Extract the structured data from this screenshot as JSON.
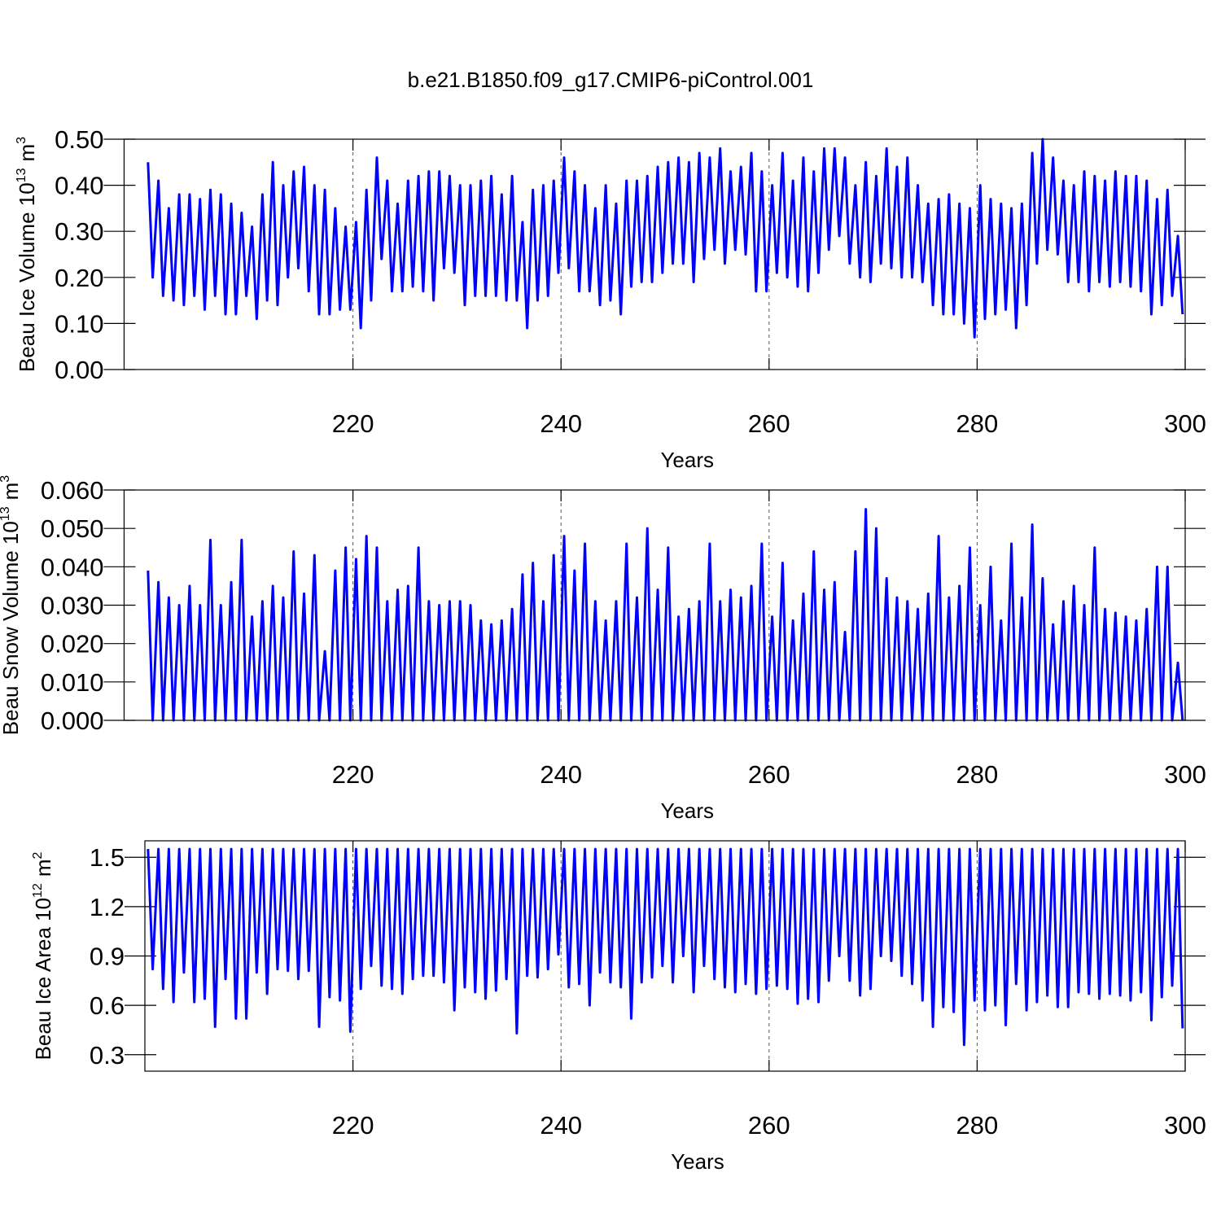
{
  "title": "b.e21.B1850.f09_g17.CMIP6-piControl.001",
  "chart_data": [
    {
      "type": "line",
      "color": "#0000ff",
      "xlabel": "Years",
      "ylabel": [
        "Beau Ice Volume 10",
        "13",
        "m",
        "3"
      ],
      "xlim": [
        198,
        300
      ],
      "xticks": [
        220,
        240,
        260,
        280,
        300
      ],
      "ylim": [
        0,
        0.5
      ],
      "yticks": [
        {
          "value": 0,
          "label": "0.00"
        },
        {
          "value": 0.1,
          "label": "0.10"
        },
        {
          "value": 0.2,
          "label": "0.20"
        },
        {
          "value": 0.3,
          "label": "0.30"
        },
        {
          "value": 0.4,
          "label": "0.40"
        },
        {
          "value": 0.5,
          "label": "0.50"
        }
      ],
      "grid": true,
      "x": [
        200.3,
        200.75,
        201.3,
        201.75,
        202.3,
        202.75,
        203.3,
        203.75,
        204.3,
        204.75,
        205.3,
        205.75,
        206.3,
        206.75,
        207.3,
        207.75,
        208.3,
        208.75,
        209.3,
        209.75,
        210.3,
        210.75,
        211.3,
        211.75,
        212.3,
        212.75,
        213.3,
        213.75,
        214.3,
        214.75,
        215.3,
        215.75,
        216.3,
        216.75,
        217.3,
        217.75,
        218.3,
        218.75,
        219.3,
        219.75,
        220.3,
        220.75,
        221.3,
        221.75,
        222.3,
        222.75,
        223.3,
        223.75,
        224.3,
        224.75,
        225.3,
        225.75,
        226.3,
        226.75,
        227.3,
        227.75,
        228.3,
        228.75,
        229.3,
        229.75,
        230.3,
        230.75,
        231.3,
        231.75,
        232.3,
        232.75,
        233.3,
        233.75,
        234.3,
        234.75,
        235.3,
        235.75,
        236.3,
        236.75,
        237.3,
        237.75,
        238.3,
        238.75,
        239.3,
        239.75,
        240.3,
        240.75,
        241.3,
        241.75,
        242.3,
        242.75,
        243.3,
        243.75,
        244.3,
        244.75,
        245.3,
        245.75,
        246.3,
        246.75,
        247.3,
        247.75,
        248.3,
        248.75,
        249.3,
        249.75,
        250.3,
        250.75,
        251.3,
        251.75,
        252.3,
        252.75,
        253.3,
        253.75,
        254.3,
        254.75,
        255.3,
        255.75,
        256.3,
        256.75,
        257.3,
        257.75,
        258.3,
        258.75,
        259.3,
        259.75,
        260.3,
        260.75,
        261.3,
        261.75,
        262.3,
        262.75,
        263.3,
        263.75,
        264.3,
        264.75,
        265.3,
        265.75,
        266.3,
        266.75,
        267.3,
        267.75,
        268.3,
        268.75,
        269.3,
        269.75,
        270.3,
        270.75,
        271.3,
        271.75,
        272.3,
        272.75,
        273.3,
        273.75,
        274.3,
        274.75,
        275.3,
        275.75,
        276.3,
        276.75,
        277.3,
        277.75,
        278.3,
        278.75,
        279.3,
        279.75,
        280.3,
        280.75,
        281.3,
        281.75,
        282.3,
        282.75,
        283.3,
        283.75,
        284.3,
        284.75,
        285.3,
        285.75,
        286.3,
        286.75,
        287.3,
        287.75,
        288.3,
        288.75,
        289.3,
        289.75,
        290.3,
        290.75,
        291.3,
        291.75,
        292.3,
        292.75,
        293.3,
        293.75,
        294.3,
        294.75,
        295.3,
        295.75,
        296.3,
        296.75,
        297.3,
        297.75,
        298.3,
        298.75,
        299.3,
        299.75
      ],
      "values": [
        0.45,
        0.2,
        0.41,
        0.16,
        0.35,
        0.15,
        0.38,
        0.14,
        0.38,
        0.16,
        0.37,
        0.13,
        0.39,
        0.16,
        0.38,
        0.12,
        0.36,
        0.12,
        0.34,
        0.16,
        0.31,
        0.11,
        0.38,
        0.15,
        0.45,
        0.14,
        0.4,
        0.2,
        0.43,
        0.22,
        0.44,
        0.17,
        0.4,
        0.12,
        0.39,
        0.12,
        0.35,
        0.13,
        0.31,
        0.13,
        0.32,
        0.09,
        0.39,
        0.15,
        0.46,
        0.24,
        0.41,
        0.17,
        0.36,
        0.17,
        0.41,
        0.18,
        0.42,
        0.17,
        0.43,
        0.15,
        0.43,
        0.22,
        0.42,
        0.21,
        0.4,
        0.14,
        0.4,
        0.16,
        0.41,
        0.16,
        0.42,
        0.16,
        0.38,
        0.15,
        0.42,
        0.15,
        0.32,
        0.09,
        0.39,
        0.15,
        0.4,
        0.16,
        0.41,
        0.21,
        0.46,
        0.22,
        0.43,
        0.17,
        0.4,
        0.17,
        0.35,
        0.14,
        0.4,
        0.15,
        0.36,
        0.12,
        0.41,
        0.18,
        0.41,
        0.19,
        0.42,
        0.19,
        0.44,
        0.21,
        0.45,
        0.23,
        0.46,
        0.23,
        0.45,
        0.19,
        0.47,
        0.24,
        0.46,
        0.26,
        0.48,
        0.23,
        0.43,
        0.26,
        0.44,
        0.25,
        0.47,
        0.17,
        0.43,
        0.17,
        0.4,
        0.21,
        0.47,
        0.2,
        0.41,
        0.18,
        0.46,
        0.17,
        0.43,
        0.21,
        0.48,
        0.26,
        0.48,
        0.29,
        0.46,
        0.23,
        0.4,
        0.2,
        0.45,
        0.19,
        0.42,
        0.23,
        0.48,
        0.22,
        0.44,
        0.2,
        0.46,
        0.2,
        0.4,
        0.19,
        0.36,
        0.14,
        0.37,
        0.12,
        0.38,
        0.12,
        0.36,
        0.1,
        0.35,
        0.07,
        0.4,
        0.11,
        0.37,
        0.12,
        0.36,
        0.13,
        0.35,
        0.09,
        0.36,
        0.14,
        0.47,
        0.23,
        0.5,
        0.26,
        0.46,
        0.25,
        0.41,
        0.19,
        0.4,
        0.19,
        0.43,
        0.17,
        0.42,
        0.19,
        0.41,
        0.18,
        0.43,
        0.19,
        0.42,
        0.18,
        0.42,
        0.17,
        0.41,
        0.12,
        0.37,
        0.14,
        0.39,
        0.16,
        0.29,
        0.12
      ]
    },
    {
      "type": "line",
      "color": "#0000ff",
      "xlabel": "Years",
      "ylabel": [
        "Beau Snow Volume 10",
        "13",
        "m",
        "3"
      ],
      "xlim": [
        198,
        300
      ],
      "xticks": [
        220,
        240,
        260,
        280,
        300
      ],
      "ylim": [
        0,
        0.06
      ],
      "yticks": [
        {
          "value": 0,
          "label": "0.000"
        },
        {
          "value": 0.01,
          "label": "0.010"
        },
        {
          "value": 0.02,
          "label": "0.020"
        },
        {
          "value": 0.03,
          "label": "0.030"
        },
        {
          "value": 0.04,
          "label": "0.040"
        },
        {
          "value": 0.05,
          "label": "0.050"
        },
        {
          "value": 0.06,
          "label": "0.060"
        }
      ],
      "grid": true,
      "x": [
        200.3,
        200.75,
        201.3,
        201.75,
        202.3,
        202.75,
        203.3,
        203.75,
        204.3,
        204.75,
        205.3,
        205.75,
        206.3,
        206.75,
        207.3,
        207.75,
        208.3,
        208.75,
        209.3,
        209.75,
        210.3,
        210.75,
        211.3,
        211.75,
        212.3,
        212.75,
        213.3,
        213.75,
        214.3,
        214.75,
        215.3,
        215.75,
        216.3,
        216.75,
        217.3,
        217.75,
        218.3,
        218.75,
        219.3,
        219.75,
        220.3,
        220.75,
        221.3,
        221.75,
        222.3,
        222.75,
        223.3,
        223.75,
        224.3,
        224.75,
        225.3,
        225.75,
        226.3,
        226.75,
        227.3,
        227.75,
        228.3,
        228.75,
        229.3,
        229.75,
        230.3,
        230.75,
        231.3,
        231.75,
        232.3,
        232.75,
        233.3,
        233.75,
        234.3,
        234.75,
        235.3,
        235.75,
        236.3,
        236.75,
        237.3,
        237.75,
        238.3,
        238.75,
        239.3,
        239.75,
        240.3,
        240.75,
        241.3,
        241.75,
        242.3,
        242.75,
        243.3,
        243.75,
        244.3,
        244.75,
        245.3,
        245.75,
        246.3,
        246.75,
        247.3,
        247.75,
        248.3,
        248.75,
        249.3,
        249.75,
        250.3,
        250.75,
        251.3,
        251.75,
        252.3,
        252.75,
        253.3,
        253.75,
        254.3,
        254.75,
        255.3,
        255.75,
        256.3,
        256.75,
        257.3,
        257.75,
        258.3,
        258.75,
        259.3,
        259.75,
        260.3,
        260.75,
        261.3,
        261.75,
        262.3,
        262.75,
        263.3,
        263.75,
        264.3,
        264.75,
        265.3,
        265.75,
        266.3,
        266.75,
        267.3,
        267.75,
        268.3,
        268.75,
        269.3,
        269.75,
        270.3,
        270.75,
        271.3,
        271.75,
        272.3,
        272.75,
        273.3,
        273.75,
        274.3,
        274.75,
        275.3,
        275.75,
        276.3,
        276.75,
        277.3,
        277.75,
        278.3,
        278.75,
        279.3,
        279.75,
        280.3,
        280.75,
        281.3,
        281.75,
        282.3,
        282.75,
        283.3,
        283.75,
        284.3,
        284.75,
        285.3,
        285.75,
        286.3,
        286.75,
        287.3,
        287.75,
        288.3,
        288.75,
        289.3,
        289.75,
        290.3,
        290.75,
        291.3,
        291.75,
        292.3,
        292.75,
        293.3,
        293.75,
        294.3,
        294.75,
        295.3,
        295.75,
        296.3,
        296.75,
        297.3,
        297.75,
        298.3,
        298.75,
        299.3,
        299.75
      ],
      "values": [
        0.039,
        0,
        0.036,
        0,
        0.032,
        0,
        0.03,
        0,
        0.035,
        0,
        0.03,
        0,
        0.047,
        0,
        0.03,
        0,
        0.036,
        0,
        0.047,
        0,
        0.027,
        0,
        0.031,
        0,
        0.035,
        0,
        0.032,
        0,
        0.044,
        0,
        0.033,
        0,
        0.043,
        0,
        0.018,
        0,
        0.039,
        0,
        0.045,
        0,
        0.042,
        0,
        0.048,
        0,
        0.045,
        0,
        0.031,
        0,
        0.034,
        0,
        0.035,
        0,
        0.045,
        0,
        0.031,
        0,
        0.03,
        0,
        0.031,
        0,
        0.031,
        0,
        0.03,
        0,
        0.026,
        0,
        0.025,
        0,
        0.026,
        0,
        0.029,
        0,
        0.038,
        0,
        0.041,
        0,
        0.031,
        0,
        0.043,
        0,
        0.048,
        0,
        0.039,
        0,
        0.046,
        0,
        0.031,
        0,
        0.026,
        0,
        0.031,
        0,
        0.046,
        0,
        0.032,
        0,
        0.05,
        0,
        0.034,
        0,
        0.045,
        0,
        0.027,
        0,
        0.029,
        0,
        0.031,
        0,
        0.046,
        0,
        0.031,
        0,
        0.034,
        0,
        0.032,
        0,
        0.035,
        0,
        0.046,
        0,
        0.027,
        0,
        0.041,
        0,
        0.026,
        0,
        0.033,
        0,
        0.044,
        0,
        0.034,
        0,
        0.036,
        0,
        0.023,
        0,
        0.044,
        0,
        0.055,
        0,
        0.05,
        0,
        0.037,
        0,
        0.032,
        0,
        0.031,
        0,
        0.029,
        0,
        0.033,
        0,
        0.048,
        0,
        0.032,
        0,
        0.035,
        0,
        0.045,
        0,
        0.03,
        0,
        0.04,
        0,
        0.026,
        0,
        0.046,
        0,
        0.032,
        0,
        0.051,
        0,
        0.037,
        0,
        0.025,
        0,
        0.031,
        0,
        0.035,
        0,
        0.03,
        0,
        0.045,
        0,
        0.029,
        0,
        0.028,
        0,
        0.027,
        0,
        0.026,
        0,
        0.029,
        0,
        0.04,
        0,
        0.04,
        0,
        0.015,
        0
      ]
    },
    {
      "type": "line",
      "color": "#0000ff",
      "xlabel": "Years",
      "ylabel": [
        "Beau Ice Area 10",
        "12",
        "m",
        "2"
      ],
      "xlim": [
        200,
        300
      ],
      "xticks": [
        220,
        240,
        260,
        280,
        300
      ],
      "ylim": [
        0.2,
        1.6
      ],
      "yticks": [
        0.3,
        0.6,
        0.9,
        1.2,
        1.5
      ],
      "grid": true,
      "x": [
        200.3,
        200.75,
        201.3,
        201.75,
        202.3,
        202.75,
        203.3,
        203.75,
        204.3,
        204.75,
        205.3,
        205.75,
        206.3,
        206.75,
        207.3,
        207.75,
        208.3,
        208.75,
        209.3,
        209.75,
        210.3,
        210.75,
        211.3,
        211.75,
        212.3,
        212.75,
        213.3,
        213.75,
        214.3,
        214.75,
        215.3,
        215.75,
        216.3,
        216.75,
        217.3,
        217.75,
        218.3,
        218.75,
        219.3,
        219.75,
        220.3,
        220.75,
        221.3,
        221.75,
        222.3,
        222.75,
        223.3,
        223.75,
        224.3,
        224.75,
        225.3,
        225.75,
        226.3,
        226.75,
        227.3,
        227.75,
        228.3,
        228.75,
        229.3,
        229.75,
        230.3,
        230.75,
        231.3,
        231.75,
        232.3,
        232.75,
        233.3,
        233.75,
        234.3,
        234.75,
        235.3,
        235.75,
        236.3,
        236.75,
        237.3,
        237.75,
        238.3,
        238.75,
        239.3,
        239.75,
        240.3,
        240.75,
        241.3,
        241.75,
        242.3,
        242.75,
        243.3,
        243.75,
        244.3,
        244.75,
        245.3,
        245.75,
        246.3,
        246.75,
        247.3,
        247.75,
        248.3,
        248.75,
        249.3,
        249.75,
        250.3,
        250.75,
        251.3,
        251.75,
        252.3,
        252.75,
        253.3,
        253.75,
        254.3,
        254.75,
        255.3,
        255.75,
        256.3,
        256.75,
        257.3,
        257.75,
        258.3,
        258.75,
        259.3,
        259.75,
        260.3,
        260.75,
        261.3,
        261.75,
        262.3,
        262.75,
        263.3,
        263.75,
        264.3,
        264.75,
        265.3,
        265.75,
        266.3,
        266.75,
        267.3,
        267.75,
        268.3,
        268.75,
        269.3,
        269.75,
        270.3,
        270.75,
        271.3,
        271.75,
        272.3,
        272.75,
        273.3,
        273.75,
        274.3,
        274.75,
        275.3,
        275.75,
        276.3,
        276.75,
        277.3,
        277.75,
        278.3,
        278.75,
        279.3,
        279.75,
        280.3,
        280.75,
        281.3,
        281.75,
        282.3,
        282.75,
        283.3,
        283.75,
        284.3,
        284.75,
        285.3,
        285.75,
        286.3,
        286.75,
        287.3,
        287.75,
        288.3,
        288.75,
        289.3,
        289.75,
        290.3,
        290.75,
        291.3,
        291.75,
        292.3,
        292.75,
        293.3,
        293.75,
        294.3,
        294.75,
        295.3,
        295.75,
        296.3,
        296.75,
        297.3,
        297.75,
        298.3,
        298.75,
        299.3,
        299.75
      ],
      "values": [
        1.55,
        0.82,
        1.55,
        0.7,
        1.55,
        0.62,
        1.55,
        0.8,
        1.55,
        0.62,
        1.55,
        0.64,
        1.55,
        0.47,
        1.55,
        0.76,
        1.55,
        0.52,
        1.55,
        0.52,
        1.55,
        0.8,
        1.55,
        0.67,
        1.55,
        0.82,
        1.55,
        0.81,
        1.55,
        0.76,
        1.55,
        0.81,
        1.55,
        0.47,
        1.55,
        0.65,
        1.55,
        0.63,
        1.55,
        0.44,
        1.55,
        0.7,
        1.55,
        0.84,
        1.55,
        0.72,
        1.55,
        0.7,
        1.55,
        0.67,
        1.55,
        0.76,
        1.55,
        0.78,
        1.55,
        0.78,
        1.55,
        0.74,
        1.55,
        0.57,
        1.55,
        0.71,
        1.55,
        0.68,
        1.55,
        0.64,
        1.55,
        0.69,
        1.55,
        0.76,
        1.55,
        0.43,
        1.55,
        0.78,
        1.55,
        0.77,
        1.55,
        0.82,
        1.55,
        0.91,
        1.55,
        0.71,
        1.55,
        0.73,
        1.55,
        0.6,
        1.55,
        0.8,
        1.55,
        0.74,
        1.55,
        0.71,
        1.55,
        0.52,
        1.55,
        0.74,
        1.55,
        0.77,
        1.55,
        0.84,
        1.55,
        0.74,
        1.55,
        0.9,
        1.55,
        0.68,
        1.55,
        0.84,
        1.55,
        0.76,
        1.55,
        0.71,
        1.55,
        0.68,
        1.55,
        0.73,
        1.55,
        0.67,
        1.55,
        0.7,
        1.55,
        0.72,
        1.55,
        0.7,
        1.55,
        0.61,
        1.55,
        0.64,
        1.55,
        0.62,
        1.55,
        0.75,
        1.55,
        0.9,
        1.55,
        0.75,
        1.55,
        0.66,
        1.55,
        0.7,
        1.55,
        0.9,
        1.55,
        0.87,
        1.55,
        0.78,
        1.55,
        0.73,
        1.55,
        0.63,
        1.55,
        0.47,
        1.55,
        0.59,
        1.55,
        0.56,
        1.55,
        0.36,
        1.55,
        0.63,
        1.55,
        0.57,
        1.55,
        0.6,
        1.55,
        0.48,
        1.55,
        0.73,
        1.55,
        0.57,
        1.55,
        0.62,
        1.55,
        0.66,
        1.55,
        0.59,
        1.55,
        0.59,
        1.55,
        0.68,
        1.55,
        0.67,
        1.55,
        0.64,
        1.55,
        0.67,
        1.55,
        0.66,
        1.55,
        0.63,
        1.55,
        0.68,
        1.55,
        0.51,
        1.55,
        0.65,
        1.55,
        0.72,
        1.55,
        0.46
      ]
    }
  ]
}
